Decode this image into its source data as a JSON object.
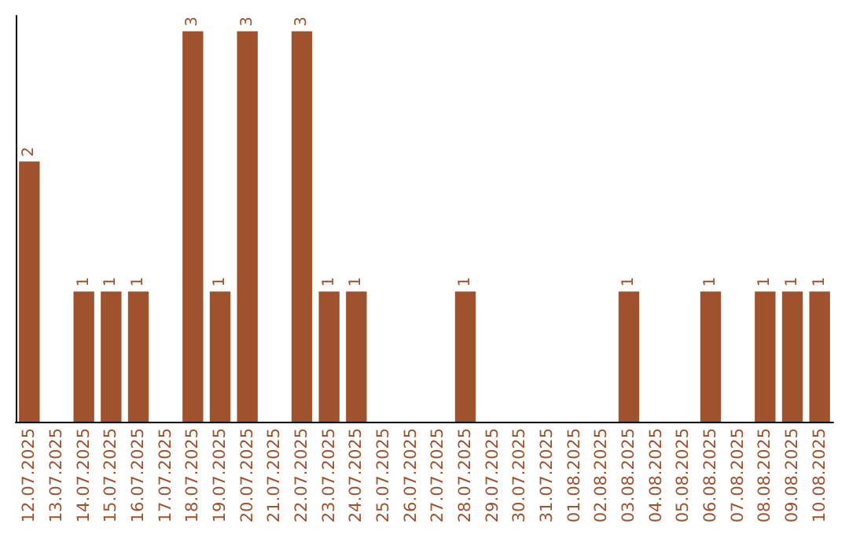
{
  "chart_data": {
    "type": "bar",
    "categories": [
      "12.07.2025",
      "13.07.2025",
      "14.07.2025",
      "15.07.2025",
      "16.07.2025",
      "17.07.2025",
      "18.07.2025",
      "19.07.2025",
      "20.07.2025",
      "21.07.2025",
      "22.07.2025",
      "23.07.2025",
      "24.07.2025",
      "25.07.2025",
      "26.07.2025",
      "27.07.2025",
      "28.07.2025",
      "29.07.2025",
      "30.07.2025",
      "31.07.2025",
      "01.08.2025",
      "02.08.2025",
      "03.08.2025",
      "04.08.2025",
      "05.08.2025",
      "06.08.2025",
      "07.08.2025",
      "08.08.2025",
      "09.08.2025",
      "10.08.2025"
    ],
    "values": [
      2,
      0,
      1,
      1,
      1,
      0,
      3,
      1,
      3,
      0,
      3,
      1,
      1,
      0,
      0,
      0,
      1,
      0,
      0,
      0,
      0,
      0,
      1,
      0,
      0,
      1,
      0,
      1,
      1,
      1
    ],
    "value_labels": [
      "2",
      null,
      "1",
      "1",
      "1",
      null,
      "3",
      "1",
      "3",
      null,
      "3",
      "1",
      "1",
      null,
      null,
      null,
      "1",
      null,
      null,
      null,
      null,
      null,
      "1",
      null,
      null,
      "1",
      null,
      "1",
      "1",
      "1"
    ],
    "color": "#a0522d"
  }
}
